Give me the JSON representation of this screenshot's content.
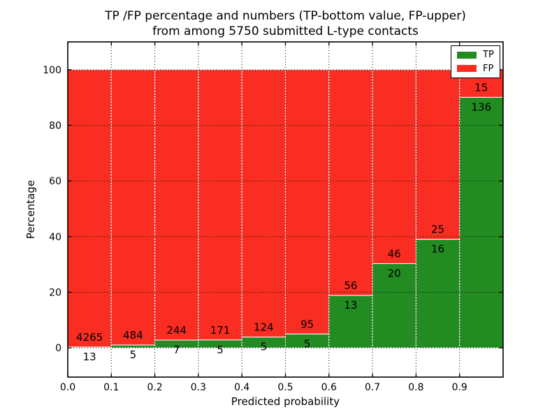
{
  "chart_data": {
    "type": "bar",
    "stacked": true,
    "normalized": "each bar stacks to 100%",
    "title_line1": "TP /FP percentage and numbers (TP-bottom value, FP-upper)",
    "title_line2": "from among 5750 submitted L-type contacts",
    "xlabel": "Predicted probability",
    "ylabel": "Percentage",
    "xlim": [
      0.0,
      1.0
    ],
    "ylim": [
      -10.5,
      110.0
    ],
    "bin_width": 0.1,
    "x_tick_labels": [
      "0.0",
      "0.1",
      "0.2",
      "0.3",
      "0.4",
      "0.5",
      "0.6",
      "0.7",
      "0.8",
      "0.9"
    ],
    "y_ticks": [
      0,
      20,
      40,
      60,
      80,
      100
    ],
    "categories": [
      "0.0-0.1",
      "0.1-0.2",
      "0.2-0.3",
      "0.3-0.4",
      "0.4-0.5",
      "0.5-0.6",
      "0.6-0.7",
      "0.7-0.8",
      "0.8-0.9",
      "0.9-1.0"
    ],
    "series": [
      {
        "name": "TP",
        "color": "#228b22",
        "counts": [
          13,
          5,
          7,
          5,
          5,
          5,
          13,
          20,
          16,
          136
        ]
      },
      {
        "name": "FP",
        "color": "#f92d22",
        "counts": [
          4265,
          484,
          244,
          171,
          124,
          95,
          56,
          46,
          25,
          15
        ]
      }
    ],
    "tp_percent_heights": [
      0.3,
      1.0,
      2.8,
      2.8,
      3.9,
      5.0,
      18.8,
      30.3,
      39.0,
      90.1
    ],
    "grid": "dotted",
    "legend_position": "upper right",
    "bar_edge_color": "#ffffff",
    "text_color": "#000000"
  }
}
